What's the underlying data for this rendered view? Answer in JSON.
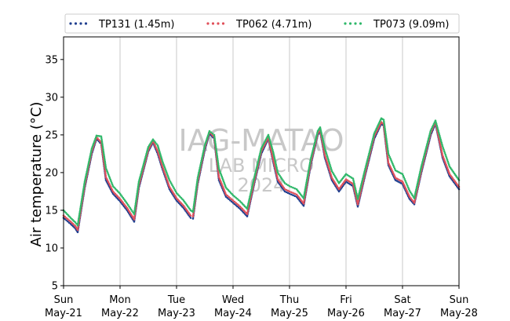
{
  "chart_data": {
    "type": "scatter",
    "title": "",
    "xlabel": "",
    "ylabel": "Air temperature (°C)",
    "ylim": [
      5,
      38
    ],
    "yticks": [
      5,
      10,
      15,
      20,
      25,
      30,
      35
    ],
    "xlim": [
      "2024-05-21 00:00",
      "2024-05-28 00:00"
    ],
    "xticks": [
      {
        "day": "Sun",
        "date": "May-21"
      },
      {
        "day": "Mon",
        "date": "May-22"
      },
      {
        "day": "Tue",
        "date": "May-23"
      },
      {
        "day": "Wed",
        "date": "May-24"
      },
      {
        "day": "Thu",
        "date": "May-25"
      },
      {
        "day": "Fri",
        "date": "May-26"
      },
      {
        "day": "Sat",
        "date": "May-27"
      },
      {
        "day": "Sun",
        "date": "May-28"
      }
    ],
    "grid": "vertical",
    "legend_position": "top",
    "watermark": [
      "IAG-MATAO",
      "LAB MICRO",
      "2024"
    ],
    "series": [
      {
        "name": "TP131 (1.45m)",
        "color": "#1f3f8f",
        "points": [
          [
            "2024-05-21 00:00",
            14.0
          ],
          [
            "2024-05-21 03:00",
            13.2
          ],
          [
            "2024-05-21 05:00",
            12.6
          ],
          [
            "2024-05-21 06:00",
            12.1
          ],
          [
            "2024-05-21 09:00",
            18.0
          ],
          [
            "2024-05-21 12:00",
            22.5
          ],
          [
            "2024-05-21 14:00",
            24.5
          ],
          [
            "2024-05-21 16:00",
            23.8
          ],
          [
            "2024-05-21 18:00",
            19.0
          ],
          [
            "2024-05-21 21:00",
            17.2
          ],
          [
            "2024-05-22 00:00",
            16.2
          ],
          [
            "2024-05-22 03:00",
            15.0
          ],
          [
            "2024-05-22 06:00",
            13.5
          ],
          [
            "2024-05-22 08:00",
            18.0
          ],
          [
            "2024-05-22 12:00",
            22.8
          ],
          [
            "2024-05-22 14:00",
            24.0
          ],
          [
            "2024-05-22 16:00",
            22.5
          ],
          [
            "2024-05-22 18:00",
            20.5
          ],
          [
            "2024-05-22 21:00",
            17.8
          ],
          [
            "2024-05-23 00:00",
            16.3
          ],
          [
            "2024-05-23 03:00",
            15.3
          ],
          [
            "2024-05-23 06:00",
            14.0
          ],
          [
            "2024-05-23 07:00",
            13.9
          ],
          [
            "2024-05-23 09:00",
            18.5
          ],
          [
            "2024-05-23 12:00",
            23.0
          ],
          [
            "2024-05-23 14:00",
            25.2
          ],
          [
            "2024-05-23 16:00",
            24.5
          ],
          [
            "2024-05-23 18:00",
            19.0
          ],
          [
            "2024-05-23 21:00",
            16.8
          ],
          [
            "2024-05-24 00:00",
            16.0
          ],
          [
            "2024-05-24 03:00",
            15.2
          ],
          [
            "2024-05-24 06:00",
            14.2
          ],
          [
            "2024-05-24 09:00",
            18.5
          ],
          [
            "2024-05-24 12:00",
            22.5
          ],
          [
            "2024-05-24 15:00",
            24.5
          ],
          [
            "2024-05-24 17:00",
            21.5
          ],
          [
            "2024-05-24 19:00",
            18.8
          ],
          [
            "2024-05-24 22:00",
            17.5
          ],
          [
            "2024-05-25 00:00",
            17.2
          ],
          [
            "2024-05-25 03:00",
            16.8
          ],
          [
            "2024-05-25 06:00",
            15.6
          ],
          [
            "2024-05-25 09:00",
            21.0
          ],
          [
            "2024-05-25 12:00",
            25.0
          ],
          [
            "2024-05-25 13:00",
            25.5
          ],
          [
            "2024-05-25 15:00",
            22.0
          ],
          [
            "2024-05-25 18:00",
            19.0
          ],
          [
            "2024-05-25 21:00",
            17.5
          ],
          [
            "2024-05-26 00:00",
            18.8
          ],
          [
            "2024-05-26 03:00",
            18.2
          ],
          [
            "2024-05-26 05:00",
            15.5
          ],
          [
            "2024-05-26 08:00",
            19.5
          ],
          [
            "2024-05-26 12:00",
            24.5
          ],
          [
            "2024-05-26 15:00",
            26.5
          ],
          [
            "2024-05-26 16:00",
            26.2
          ],
          [
            "2024-05-26 18:00",
            21.0
          ],
          [
            "2024-05-26 21:00",
            19.0
          ],
          [
            "2024-05-27 00:00",
            18.5
          ],
          [
            "2024-05-27 03:00",
            16.5
          ],
          [
            "2024-05-27 05:00",
            15.8
          ],
          [
            "2024-05-27 08:00",
            20.0
          ],
          [
            "2024-05-27 12:00",
            25.0
          ],
          [
            "2024-05-27 14:00",
            26.5
          ],
          [
            "2024-05-27 17:00",
            22.0
          ],
          [
            "2024-05-27 20:00",
            19.5
          ],
          [
            "2024-05-28 00:00",
            17.8
          ]
        ]
      },
      {
        "name": "TP062 (4.71m)",
        "color": "#e0505a",
        "points": [
          [
            "2024-05-21 00:00",
            14.3
          ],
          [
            "2024-05-21 03:00",
            13.5
          ],
          [
            "2024-05-21 05:00",
            12.9
          ],
          [
            "2024-05-21 06:00",
            12.4
          ],
          [
            "2024-05-21 09:00",
            18.3
          ],
          [
            "2024-05-21 12:00",
            22.8
          ],
          [
            "2024-05-21 14:00",
            24.7
          ],
          [
            "2024-05-21 16:00",
            24.0
          ],
          [
            "2024-05-21 18:00",
            19.4
          ],
          [
            "2024-05-21 21:00",
            17.5
          ],
          [
            "2024-05-22 00:00",
            16.5
          ],
          [
            "2024-05-22 03:00",
            15.3
          ],
          [
            "2024-05-22 06:00",
            13.8
          ],
          [
            "2024-05-22 08:00",
            18.3
          ],
          [
            "2024-05-22 12:00",
            23.0
          ],
          [
            "2024-05-22 14:00",
            24.2
          ],
          [
            "2024-05-22 16:00",
            22.8
          ],
          [
            "2024-05-22 18:00",
            20.8
          ],
          [
            "2024-05-22 21:00",
            18.1
          ],
          [
            "2024-05-23 00:00",
            16.6
          ],
          [
            "2024-05-23 03:00",
            15.6
          ],
          [
            "2024-05-23 06:00",
            14.3
          ],
          [
            "2024-05-23 07:00",
            14.2
          ],
          [
            "2024-05-23 09:00",
            18.8
          ],
          [
            "2024-05-23 12:00",
            23.3
          ],
          [
            "2024-05-23 14:00",
            25.4
          ],
          [
            "2024-05-23 16:00",
            24.7
          ],
          [
            "2024-05-23 18:00",
            19.4
          ],
          [
            "2024-05-23 21:00",
            17.1
          ],
          [
            "2024-05-24 00:00",
            16.3
          ],
          [
            "2024-05-24 03:00",
            15.5
          ],
          [
            "2024-05-24 06:00",
            14.5
          ],
          [
            "2024-05-24 09:00",
            18.8
          ],
          [
            "2024-05-24 12:00",
            22.8
          ],
          [
            "2024-05-24 15:00",
            24.7
          ],
          [
            "2024-05-24 17:00",
            21.8
          ],
          [
            "2024-05-24 19:00",
            19.1
          ],
          [
            "2024-05-24 22:00",
            17.8
          ],
          [
            "2024-05-25 00:00",
            17.5
          ],
          [
            "2024-05-25 03:00",
            17.1
          ],
          [
            "2024-05-25 06:00",
            15.9
          ],
          [
            "2024-05-25 09:00",
            21.3
          ],
          [
            "2024-05-25 12:00",
            25.2
          ],
          [
            "2024-05-25 13:00",
            25.7
          ],
          [
            "2024-05-25 15:00",
            22.3
          ],
          [
            "2024-05-25 18:00",
            19.3
          ],
          [
            "2024-05-25 21:00",
            17.8
          ],
          [
            "2024-05-26 00:00",
            19.1
          ],
          [
            "2024-05-26 03:00",
            18.5
          ],
          [
            "2024-05-26 05:00",
            15.8
          ],
          [
            "2024-05-26 08:00",
            19.8
          ],
          [
            "2024-05-26 12:00",
            24.8
          ],
          [
            "2024-05-26 15:00",
            26.7
          ],
          [
            "2024-05-26 16:00",
            26.4
          ],
          [
            "2024-05-26 18:00",
            21.3
          ],
          [
            "2024-05-26 21:00",
            19.3
          ],
          [
            "2024-05-27 00:00",
            18.8
          ],
          [
            "2024-05-27 03:00",
            16.8
          ],
          [
            "2024-05-27 05:00",
            16.0
          ],
          [
            "2024-05-27 08:00",
            20.3
          ],
          [
            "2024-05-27 12:00",
            25.3
          ],
          [
            "2024-05-27 14:00",
            26.7
          ],
          [
            "2024-05-27 17:00",
            22.3
          ],
          [
            "2024-05-27 20:00",
            19.8
          ],
          [
            "2024-05-28 00:00",
            18.1
          ]
        ]
      },
      {
        "name": "TP073 (9.09m)",
        "color": "#2fb86a",
        "points": [
          [
            "2024-05-21 00:00",
            15.0
          ],
          [
            "2024-05-21 03:00",
            14.0
          ],
          [
            "2024-05-21 05:00",
            13.4
          ],
          [
            "2024-05-21 06:00",
            13.0
          ],
          [
            "2024-05-21 09:00",
            18.8
          ],
          [
            "2024-05-21 12:00",
            23.2
          ],
          [
            "2024-05-21 14:00",
            24.9
          ],
          [
            "2024-05-21 16:00",
            24.8
          ],
          [
            "2024-05-21 18:00",
            20.6
          ],
          [
            "2024-05-21 21:00",
            18.2
          ],
          [
            "2024-05-22 00:00",
            17.2
          ],
          [
            "2024-05-22 03:00",
            15.9
          ],
          [
            "2024-05-22 06:00",
            14.5
          ],
          [
            "2024-05-22 08:00",
            18.8
          ],
          [
            "2024-05-22 12:00",
            23.4
          ],
          [
            "2024-05-22 14:00",
            24.4
          ],
          [
            "2024-05-22 16:00",
            23.6
          ],
          [
            "2024-05-22 18:00",
            21.5
          ],
          [
            "2024-05-22 21:00",
            19.0
          ],
          [
            "2024-05-23 00:00",
            17.3
          ],
          [
            "2024-05-23 03:00",
            16.3
          ],
          [
            "2024-05-23 06:00",
            15.0
          ],
          [
            "2024-05-23 07:00",
            14.8
          ],
          [
            "2024-05-23 09:00",
            19.3
          ],
          [
            "2024-05-23 12:00",
            23.6
          ],
          [
            "2024-05-23 14:00",
            25.5
          ],
          [
            "2024-05-23 16:00",
            25.0
          ],
          [
            "2024-05-23 18:00",
            20.5
          ],
          [
            "2024-05-23 21:00",
            18.0
          ],
          [
            "2024-05-24 00:00",
            17.0
          ],
          [
            "2024-05-24 03:00",
            16.2
          ],
          [
            "2024-05-24 06:00",
            15.2
          ],
          [
            "2024-05-24 09:00",
            19.3
          ],
          [
            "2024-05-24 12:00",
            23.2
          ],
          [
            "2024-05-24 15:00",
            25.0
          ],
          [
            "2024-05-24 17:00",
            22.8
          ],
          [
            "2024-05-24 19:00",
            20.0
          ],
          [
            "2024-05-24 22:00",
            18.6
          ],
          [
            "2024-05-25 00:00",
            18.2
          ],
          [
            "2024-05-25 03:00",
            17.8
          ],
          [
            "2024-05-25 06:00",
            16.6
          ],
          [
            "2024-05-25 09:00",
            21.8
          ],
          [
            "2024-05-25 12:00",
            25.5
          ],
          [
            "2024-05-25 13:00",
            26.0
          ],
          [
            "2024-05-25 15:00",
            23.2
          ],
          [
            "2024-05-25 18:00",
            20.2
          ],
          [
            "2024-05-25 21:00",
            18.6
          ],
          [
            "2024-05-26 00:00",
            19.8
          ],
          [
            "2024-05-26 03:00",
            19.2
          ],
          [
            "2024-05-26 05:00",
            16.5
          ],
          [
            "2024-05-26 08:00",
            20.3
          ],
          [
            "2024-05-26 12:00",
            25.2
          ],
          [
            "2024-05-26 15:00",
            27.2
          ],
          [
            "2024-05-26 16:00",
            27.0
          ],
          [
            "2024-05-26 18:00",
            22.5
          ],
          [
            "2024-05-26 21:00",
            20.3
          ],
          [
            "2024-05-27 00:00",
            19.8
          ],
          [
            "2024-05-27 03:00",
            17.6
          ],
          [
            "2024-05-27 05:00",
            16.6
          ],
          [
            "2024-05-27 08:00",
            20.8
          ],
          [
            "2024-05-27 12:00",
            25.6
          ],
          [
            "2024-05-27 14:00",
            26.9
          ],
          [
            "2024-05-27 17:00",
            23.5
          ],
          [
            "2024-05-27 20:00",
            20.8
          ],
          [
            "2024-05-28 00:00",
            19.0
          ]
        ]
      }
    ]
  }
}
